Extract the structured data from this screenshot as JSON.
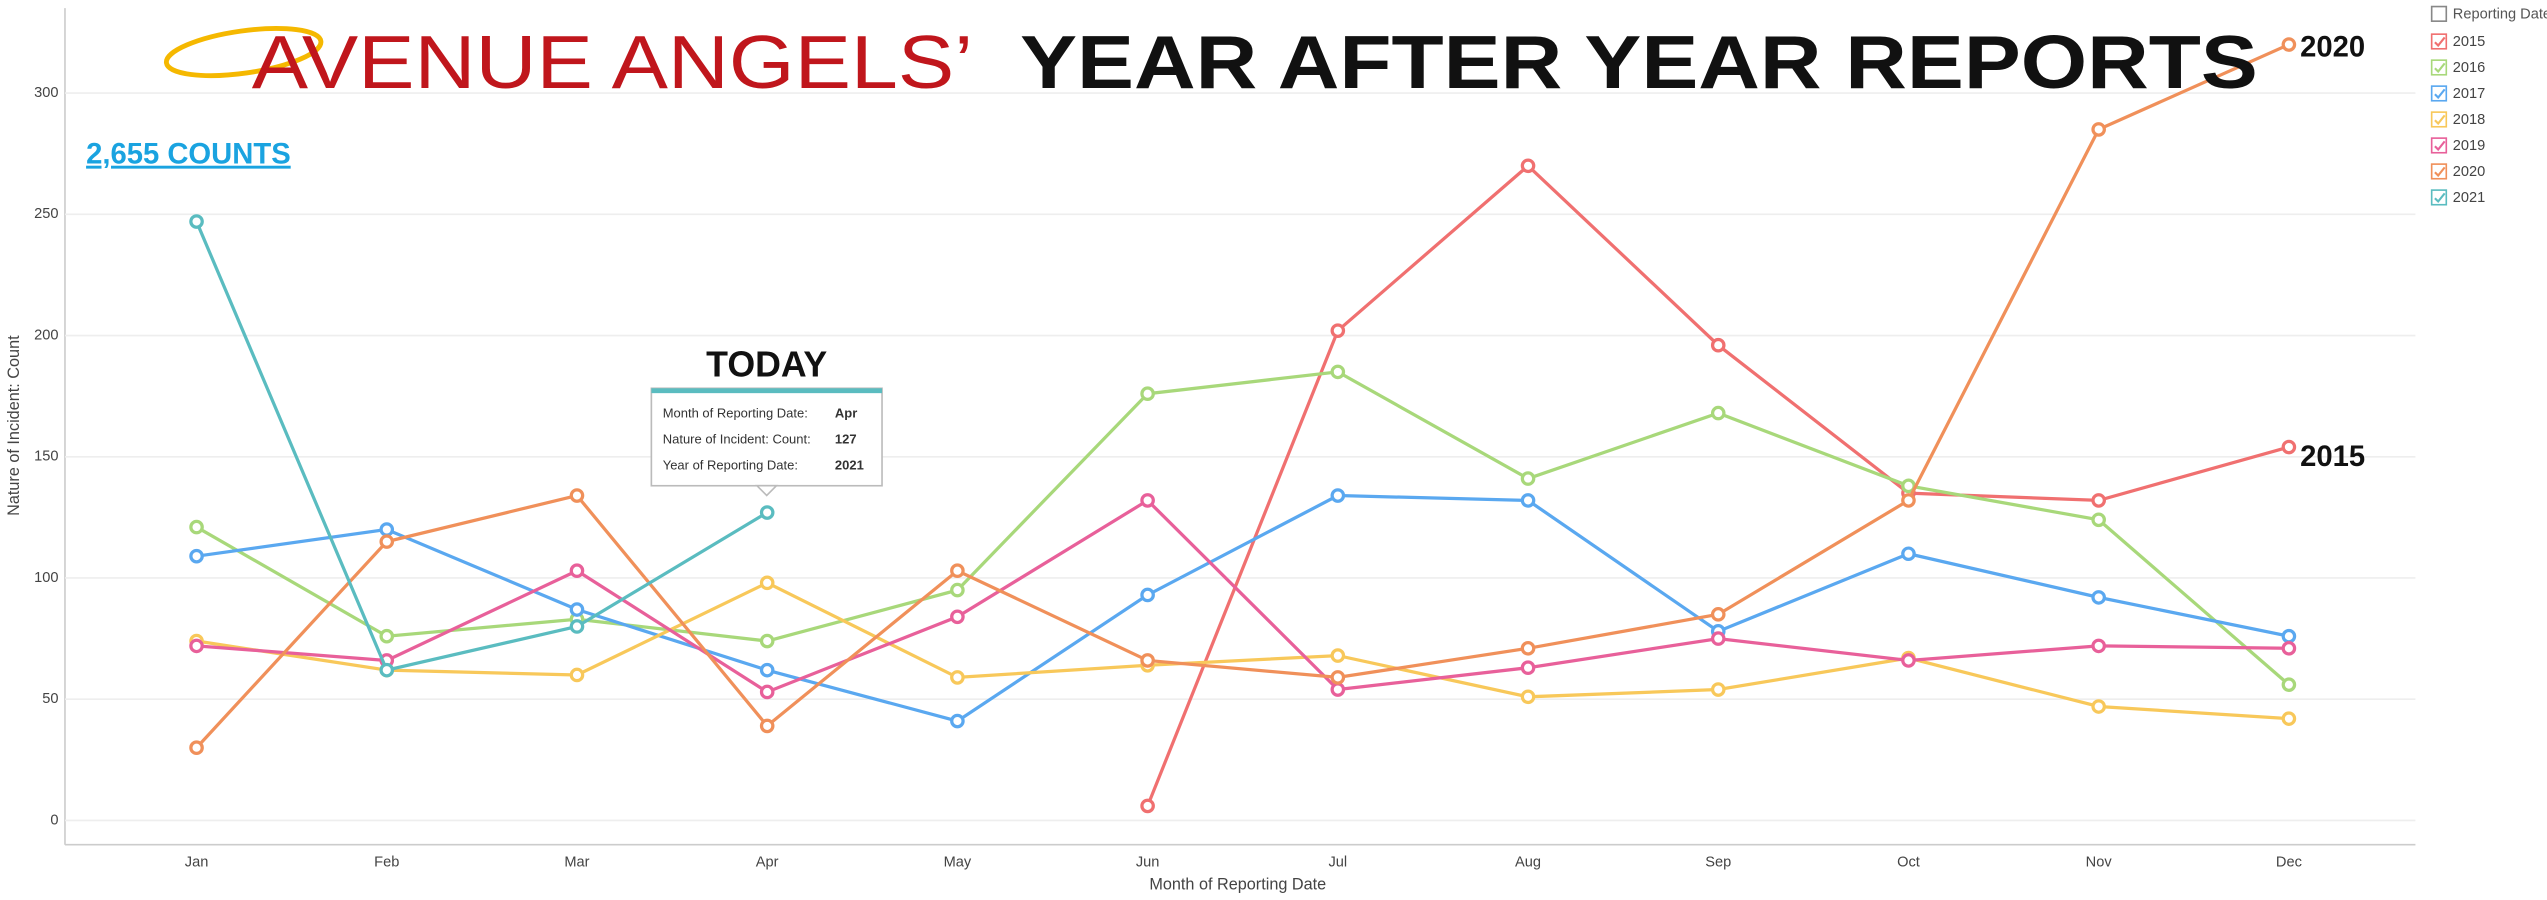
{
  "chart_data": {
    "type": "line",
    "title_part1": "AVENUE ANGELS’",
    "title_part2": "YEAR AFTER YEAR REPORTS",
    "summary_link": "2,655 COUNTS",
    "annotations": [
      "TODAY",
      "2020",
      "2015"
    ],
    "x_label": "Month of Reporting Date",
    "y_label": "Nature of Incident: Count",
    "legend_title": "Reporting Date",
    "categories": [
      "Jan",
      "Feb",
      "Mar",
      "Apr",
      "May",
      "Jun",
      "Jul",
      "Aug",
      "Sep",
      "Oct",
      "Nov",
      "Dec"
    ],
    "series": [
      {
        "name": "2015",
        "color": "#f07070",
        "values": [
          null,
          null,
          null,
          null,
          null,
          6,
          202,
          270,
          196,
          135,
          132,
          154
        ]
      },
      {
        "name": "2016",
        "color": "#a8d87a",
        "values": [
          121,
          76,
          83,
          74,
          95,
          176,
          185,
          141,
          168,
          138,
          124,
          56
        ]
      },
      {
        "name": "2017",
        "color": "#5aa8f0",
        "values": [
          109,
          120,
          87,
          62,
          41,
          93,
          134,
          132,
          78,
          110,
          92,
          76
        ]
      },
      {
        "name": "2018",
        "color": "#f8c85a",
        "values": [
          74,
          62,
          60,
          98,
          59,
          64,
          68,
          51,
          54,
          67,
          47,
          42
        ]
      },
      {
        "name": "2019",
        "color": "#e8609a",
        "values": [
          72,
          66,
          103,
          53,
          84,
          132,
          54,
          63,
          75,
          66,
          72,
          71
        ]
      },
      {
        "name": "2020",
        "color": "#f0905a",
        "values": [
          30,
          115,
          134,
          39,
          103,
          66,
          59,
          71,
          85,
          132,
          285,
          320
        ]
      },
      {
        "name": "2021",
        "color": "#5abcc0",
        "values": [
          247,
          62,
          80,
          127,
          null,
          null,
          null,
          null,
          null,
          null,
          null,
          null
        ]
      }
    ],
    "tooltip": [
      {
        "label": "Month of Reporting Date:",
        "value": "Apr"
      },
      {
        "label": "Nature of Incident: Count:",
        "value": "127"
      },
      {
        "label": "Year of Reporting Date:",
        "value": "2021"
      }
    ],
    "ylim": [
      -10,
      335
    ],
    "yticks": [
      0,
      50,
      100,
      150,
      200,
      250,
      300
    ],
    "grid": true
  }
}
